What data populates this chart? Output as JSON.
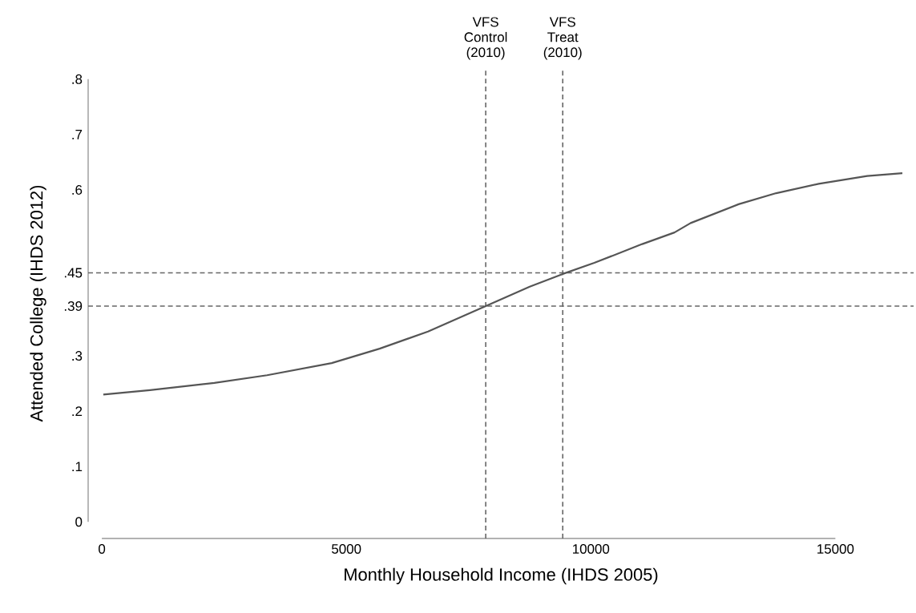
{
  "chart_data": {
    "type": "line",
    "xlabel": "Monthly Household Income (IHDS 2005)",
    "ylabel": "Attended College (IHDS 2012)",
    "x": [
      30,
      985,
      2300,
      3380,
      4700,
      5680,
      6670,
      7850,
      8750,
      9425,
      10070,
      11050,
      11710,
      12040,
      13020,
      13790,
      14660,
      15650,
      16370
    ],
    "series": [
      {
        "color": "#555555",
        "values": [
          0.23,
          0.238,
          0.251,
          0.265,
          0.287,
          0.313,
          0.344,
          0.39,
          0.425,
          0.448,
          0.468,
          0.502,
          0.523,
          0.54,
          0.574,
          0.594,
          0.611,
          0.625,
          0.63
        ]
      }
    ],
    "xlim": [
      -280,
      16600
    ],
    "ylim": [
      -0.03,
      0.82
    ],
    "xticks": [
      0,
      5000,
      10000,
      15000
    ],
    "yticks": [
      0,
      {
        "value": 0.1,
        "label": ".1"
      },
      {
        "value": 0.2,
        "label": ".2"
      },
      {
        "value": 0.3,
        "label": ".3"
      },
      {
        "value": 0.39,
        "label": ".39"
      },
      {
        "value": 0.45,
        "label": ".45"
      },
      {
        "value": 0.6,
        "label": ".6"
      },
      {
        "value": 0.7,
        "label": ".7"
      },
      {
        "value": 0.8,
        "label": ".8"
      }
    ],
    "ref_lines": [
      {
        "axis": "x",
        "value": 7850,
        "label": "VFS Control (2010)",
        "color": "#666666",
        "line_style": "dashed"
      },
      {
        "axis": "x",
        "value": 9425,
        "label": "VFS Treat (2010)",
        "color": "#666666",
        "line_style": "dashed"
      },
      {
        "axis": "y",
        "value": 0.45,
        "color": "#666666",
        "line_style": "dashed"
      },
      {
        "axis": "y",
        "value": 0.39,
        "color": "#666666",
        "line_style": "dashed"
      }
    ],
    "grid": false,
    "line_style": "solid",
    "marker": "none"
  }
}
